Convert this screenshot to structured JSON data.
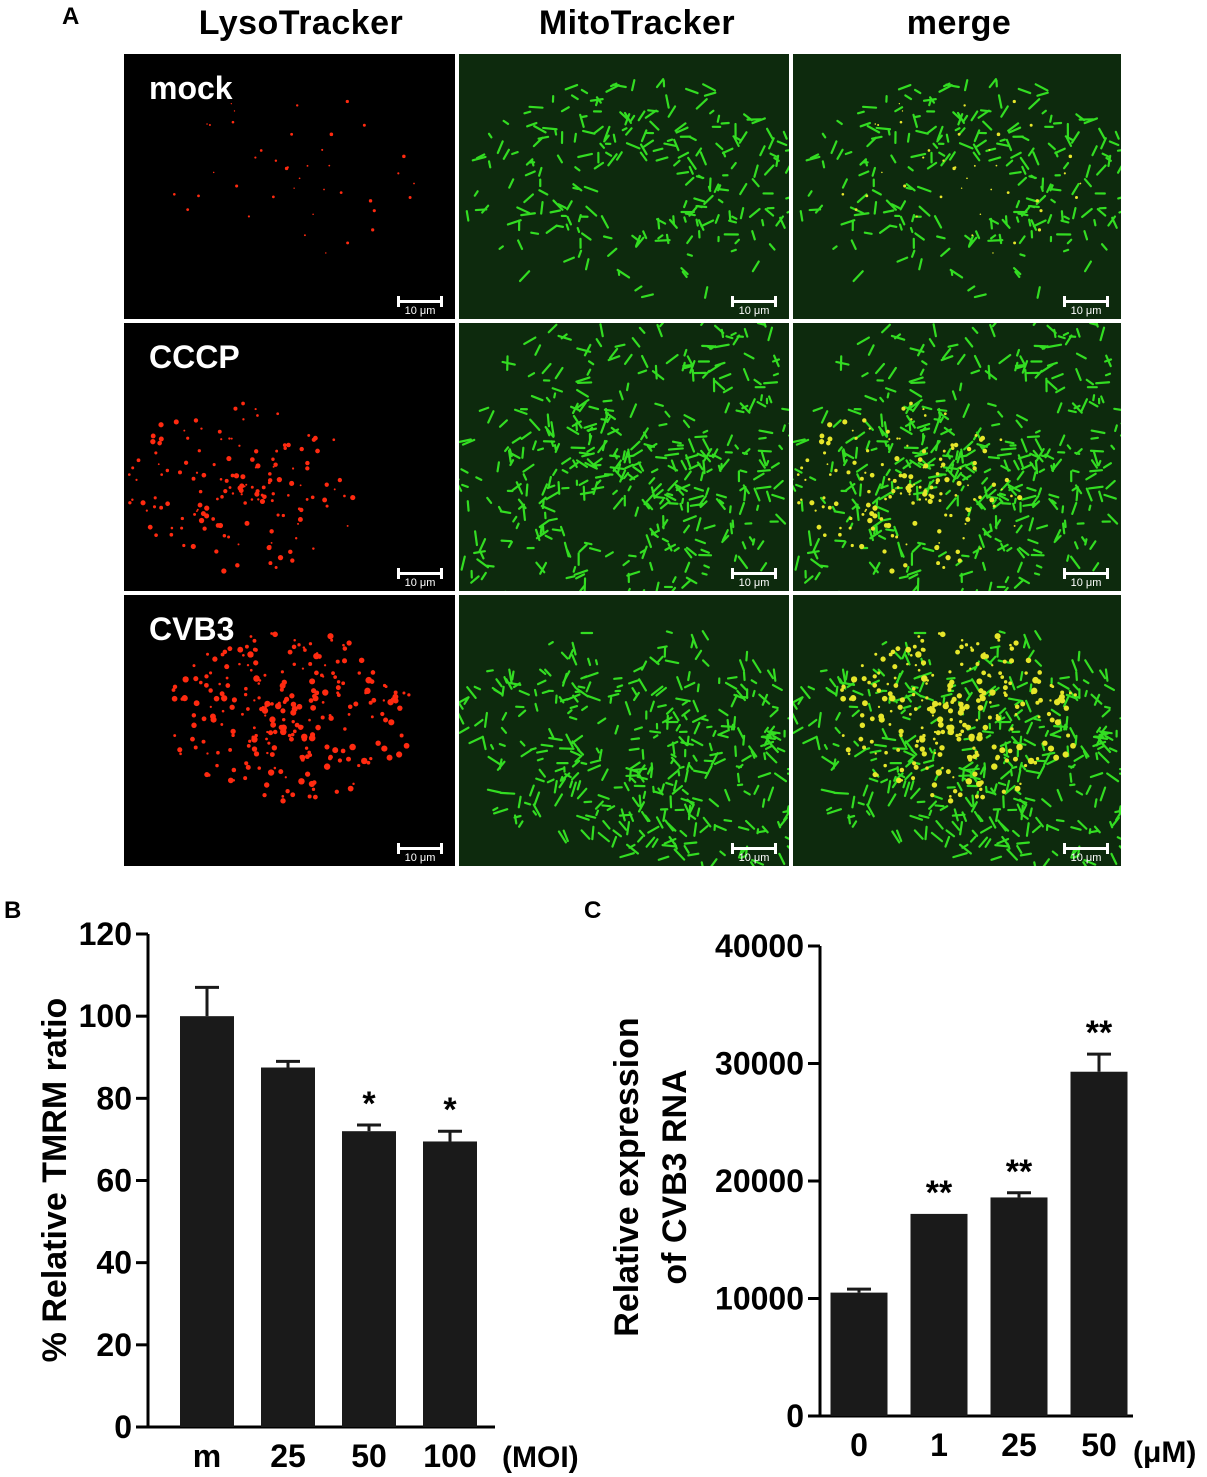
{
  "panel_a": {
    "letter": "A",
    "columns": [
      "LysoTracker",
      "MitoTracker",
      "merge"
    ],
    "rows": [
      "mock",
      "CCCP",
      "CVB3"
    ],
    "scale_bar_label": "10 μm",
    "channel_colors": {
      "lyso": "#ff2a10",
      "mito": "#33dd22",
      "overlap": "#e6e62a"
    }
  },
  "panel_b": {
    "letter": "B",
    "unit": "(MOI)"
  },
  "panel_c": {
    "letter": "C",
    "unit": "(μM)"
  },
  "chart_data": [
    {
      "type": "bar",
      "panel": "B",
      "categories": [
        "m",
        "25",
        "50",
        "100"
      ],
      "values": [
        100,
        87.5,
        72,
        69.5
      ],
      "errors": [
        7,
        1.5,
        1.5,
        2.5
      ],
      "significance": [
        "",
        "",
        "*",
        "*"
      ],
      "ylabel": "% Relative TMRM ratio",
      "xlabel": "",
      "ylim": [
        0,
        120
      ],
      "yticks": [
        0,
        20,
        40,
        60,
        80,
        100,
        120
      ],
      "bar_color": "#1a1a1a"
    },
    {
      "type": "bar",
      "panel": "C",
      "categories": [
        "0",
        "1",
        "25",
        "50"
      ],
      "values": [
        10500,
        17200,
        18600,
        29300
      ],
      "errors": [
        300,
        0,
        400,
        1500
      ],
      "significance": [
        "",
        "**",
        "**",
        "**"
      ],
      "ylabel": "Relative expression of CVB3 RNA",
      "ylabel_lines": [
        "Relative expression",
        "of CVB3 RNA"
      ],
      "xlabel": "",
      "ylim": [
        0,
        40000
      ],
      "yticks": [
        0,
        10000,
        20000,
        30000,
        40000
      ],
      "bar_color": "#1a1a1a"
    }
  ]
}
